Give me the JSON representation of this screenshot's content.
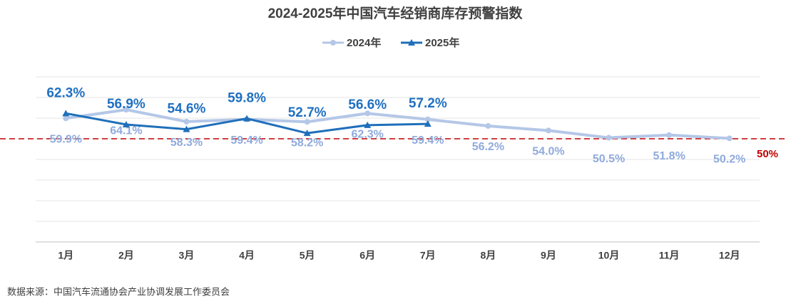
{
  "chart_data": {
    "type": "line",
    "title": "2024-2025年中国汽车经销商库存预警指数",
    "categories": [
      "1月",
      "2月",
      "3月",
      "4月",
      "5月",
      "6月",
      "7月",
      "8月",
      "9月",
      "10月",
      "11月",
      "12月"
    ],
    "series": [
      {
        "name": "2024年",
        "color": "#b4c7e7",
        "label_color": "#8faadc",
        "values": [
          59.9,
          64.1,
          58.3,
          59.4,
          58.2,
          62.3,
          59.4,
          56.2,
          54.0,
          50.5,
          51.8,
          50.2
        ],
        "value_labels": [
          "59.9%",
          "64.1%",
          "58.3%",
          "59.4%",
          "58.2%",
          "62.3%",
          "59.4%",
          "56.2%",
          "54.0%",
          "50.5%",
          "51.8%",
          "50.2%"
        ]
      },
      {
        "name": "2025年",
        "color": "#1f6fba",
        "label_color": "#1f70c1",
        "values": [
          62.3,
          56.9,
          54.6,
          59.8,
          52.7,
          56.6,
          57.2,
          null,
          null,
          null,
          null,
          null
        ],
        "value_labels": [
          "62.3%",
          "56.9%",
          "54.6%",
          "59.8%",
          "52.7%",
          "56.6%",
          "57.2%",
          null,
          null,
          null,
          null,
          null
        ]
      }
    ],
    "ylim": [
      0,
      85
    ],
    "yticks": [
      0,
      10,
      20,
      30,
      40,
      50,
      60,
      70,
      80
    ],
    "grid": true,
    "reference_line": {
      "value": 50,
      "label": "50%",
      "color": "#c00000"
    },
    "legend": "top",
    "source": "数据来源：中国汽车流通协会产业协调发展工作委员会"
  }
}
